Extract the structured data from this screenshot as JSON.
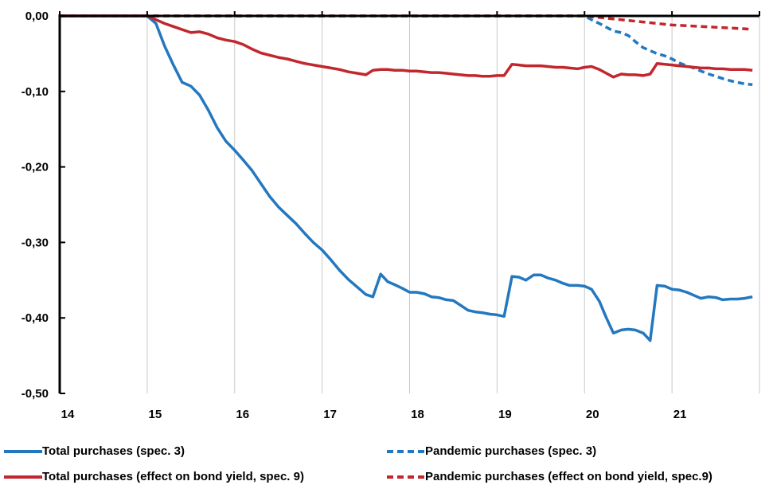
{
  "chart_data": {
    "type": "line",
    "title": "",
    "xlabel": "",
    "ylabel": "",
    "xlim": [
      14,
      22
    ],
    "ylim": [
      -0.5,
      0.0
    ],
    "x_ticks": [
      "14",
      "15",
      "16",
      "17",
      "18",
      "19",
      "20",
      "21"
    ],
    "y_ticks": [
      "0,00",
      "-0,10",
      "-0,20",
      "-0,30",
      "-0,40",
      "-0,50"
    ],
    "grid": "vertical",
    "legend_position": "bottom",
    "series": [
      {
        "name": "Total purchases (spec. 3)",
        "color": "#2378c0",
        "dash": "solid",
        "x": [
          14.0,
          15.0,
          15.1,
          15.2,
          15.3,
          15.4,
          15.5,
          15.6,
          15.7,
          15.8,
          15.9,
          16.0,
          16.1,
          16.2,
          16.3,
          16.4,
          16.5,
          16.6,
          16.7,
          16.8,
          16.9,
          17.0,
          17.1,
          17.2,
          17.3,
          17.4,
          17.5,
          17.58,
          17.67,
          17.75,
          17.83,
          17.92,
          18.0,
          18.08,
          18.17,
          18.25,
          18.33,
          18.42,
          18.5,
          18.58,
          18.67,
          18.75,
          18.83,
          18.92,
          19.0,
          19.08,
          19.17,
          19.25,
          19.33,
          19.42,
          19.5,
          19.58,
          19.67,
          19.75,
          19.83,
          19.92,
          20.0,
          20.08,
          20.17,
          20.25,
          20.33,
          20.42,
          20.5,
          20.58,
          20.67,
          20.75,
          20.83,
          20.92,
          21.0,
          21.08,
          21.17,
          21.25,
          21.33,
          21.42,
          21.5,
          21.58,
          21.67,
          21.75,
          21.83,
          21.92
        ],
        "y": [
          0.0,
          0.0,
          -0.01,
          -0.04,
          -0.065,
          -0.088,
          -0.093,
          -0.105,
          -0.125,
          -0.148,
          -0.166,
          -0.178,
          -0.191,
          -0.205,
          -0.222,
          -0.239,
          -0.253,
          -0.264,
          -0.275,
          -0.288,
          -0.3,
          -0.31,
          -0.323,
          -0.337,
          -0.349,
          -0.359,
          -0.369,
          -0.372,
          -0.342,
          -0.352,
          -0.356,
          -0.361,
          -0.366,
          -0.366,
          -0.368,
          -0.372,
          -0.373,
          -0.376,
          -0.377,
          -0.383,
          -0.39,
          -0.392,
          -0.393,
          -0.395,
          -0.396,
          -0.398,
          -0.345,
          -0.346,
          -0.35,
          -0.343,
          -0.343,
          -0.347,
          -0.35,
          -0.354,
          -0.357,
          -0.357,
          -0.358,
          -0.362,
          -0.378,
          -0.4,
          -0.42,
          -0.416,
          -0.415,
          -0.416,
          -0.42,
          -0.43,
          -0.357,
          -0.358,
          -0.362,
          -0.363,
          -0.366,
          -0.37,
          -0.374,
          -0.372,
          -0.373,
          -0.376,
          -0.375,
          -0.375,
          -0.374,
          -0.372
        ]
      },
      {
        "name": "Pandemic purchases (spec. 3)",
        "color": "#2378c0",
        "dash": "dashed",
        "x": [
          14.0,
          20.0,
          20.08,
          20.17,
          20.25,
          20.33,
          20.42,
          20.5,
          20.58,
          20.67,
          20.75,
          20.83,
          20.92,
          21.0,
          21.08,
          21.17,
          21.25,
          21.33,
          21.42,
          21.5,
          21.58,
          21.67,
          21.75,
          21.83,
          21.92
        ],
        "y": [
          0.0,
          0.0,
          -0.005,
          -0.01,
          -0.015,
          -0.02,
          -0.022,
          -0.026,
          -0.034,
          -0.042,
          -0.046,
          -0.05,
          -0.053,
          -0.057,
          -0.062,
          -0.066,
          -0.069,
          -0.073,
          -0.077,
          -0.08,
          -0.083,
          -0.086,
          -0.088,
          -0.09,
          -0.091
        ]
      },
      {
        "name": "Total purchases (effect on bond yield, spec. 9)",
        "color": "#c1272d",
        "dash": "solid",
        "x": [
          14.0,
          15.0,
          15.1,
          15.2,
          15.3,
          15.4,
          15.5,
          15.6,
          15.7,
          15.8,
          15.9,
          16.0,
          16.1,
          16.2,
          16.3,
          16.4,
          16.5,
          16.6,
          16.7,
          16.8,
          16.9,
          17.0,
          17.1,
          17.2,
          17.3,
          17.4,
          17.5,
          17.58,
          17.67,
          17.75,
          17.83,
          17.92,
          18.0,
          18.08,
          18.17,
          18.25,
          18.33,
          18.42,
          18.5,
          18.58,
          18.67,
          18.75,
          18.83,
          18.92,
          19.0,
          19.08,
          19.17,
          19.25,
          19.33,
          19.42,
          19.5,
          19.58,
          19.67,
          19.75,
          19.83,
          19.92,
          20.0,
          20.08,
          20.17,
          20.25,
          20.33,
          20.42,
          20.5,
          20.58,
          20.67,
          20.75,
          20.83,
          20.92,
          21.0,
          21.08,
          21.17,
          21.25,
          21.33,
          21.42,
          21.5,
          21.58,
          21.67,
          21.75,
          21.83,
          21.92
        ],
        "y": [
          0.0,
          0.0,
          -0.005,
          -0.01,
          -0.014,
          -0.018,
          -0.022,
          -0.021,
          -0.024,
          -0.029,
          -0.032,
          -0.034,
          -0.038,
          -0.044,
          -0.049,
          -0.052,
          -0.055,
          -0.057,
          -0.06,
          -0.063,
          -0.065,
          -0.067,
          -0.069,
          -0.071,
          -0.074,
          -0.076,
          -0.078,
          -0.072,
          -0.071,
          -0.071,
          -0.072,
          -0.072,
          -0.073,
          -0.073,
          -0.074,
          -0.075,
          -0.075,
          -0.076,
          -0.077,
          -0.078,
          -0.079,
          -0.079,
          -0.08,
          -0.08,
          -0.079,
          -0.079,
          -0.064,
          -0.065,
          -0.066,
          -0.066,
          -0.066,
          -0.067,
          -0.068,
          -0.068,
          -0.069,
          -0.07,
          -0.068,
          -0.067,
          -0.071,
          -0.076,
          -0.081,
          -0.077,
          -0.078,
          -0.078,
          -0.079,
          -0.077,
          -0.063,
          -0.064,
          -0.065,
          -0.066,
          -0.067,
          -0.068,
          -0.069,
          -0.069,
          -0.07,
          -0.07,
          -0.071,
          -0.071,
          -0.071,
          -0.072
        ]
      },
      {
        "name": "Pandemic purchases (effect on bond yield, spec.9)",
        "color": "#c1272d",
        "dash": "dashed",
        "x": [
          14.0,
          20.0,
          20.17,
          20.33,
          20.5,
          20.67,
          20.83,
          21.0,
          21.17,
          21.33,
          21.5,
          21.67,
          21.83,
          21.92
        ],
        "y": [
          0.0,
          0.0,
          -0.002,
          -0.004,
          -0.006,
          -0.008,
          -0.01,
          -0.012,
          -0.013,
          -0.014,
          -0.015,
          -0.016,
          -0.017,
          -0.018
        ]
      }
    ]
  },
  "legend": {
    "items": [
      {
        "label": "Total purchases (spec. 3)"
      },
      {
        "label": "Pandemic purchases (spec. 3)"
      },
      {
        "label": "Total purchases (effect on bond yield, spec. 9)"
      },
      {
        "label": "Pandemic purchases (effect on bond yield, spec.9)"
      }
    ]
  }
}
